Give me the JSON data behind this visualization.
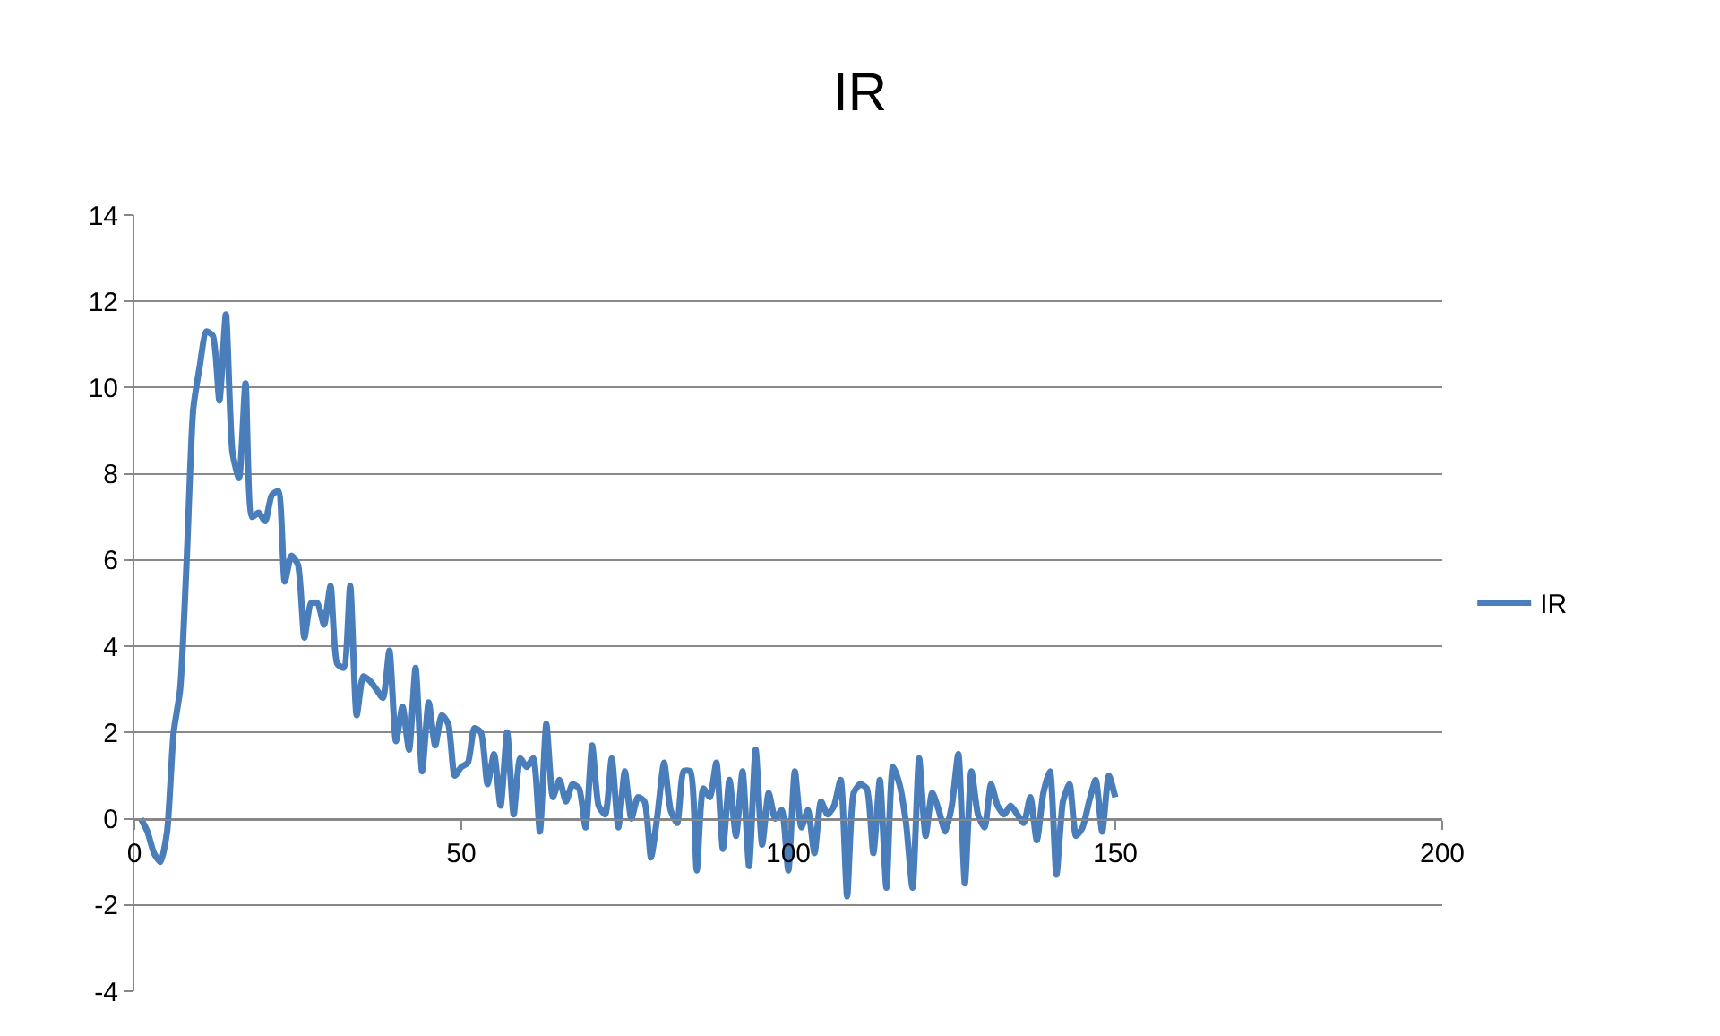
{
  "chart_data": {
    "type": "line",
    "title": "IR",
    "x": [
      1,
      2,
      3,
      4,
      5,
      6,
      7,
      8,
      9,
      10,
      11,
      12,
      13,
      14,
      15,
      16,
      17,
      18,
      19,
      20,
      21,
      22,
      23,
      24,
      25,
      26,
      27,
      28,
      29,
      30,
      31,
      32,
      33,
      34,
      35,
      36,
      37,
      38,
      39,
      40,
      41,
      42,
      43,
      44,
      45,
      46,
      47,
      48,
      49,
      50,
      51,
      52,
      53,
      54,
      55,
      56,
      57,
      58,
      59,
      60,
      61,
      62,
      63,
      64,
      65,
      66,
      67,
      68,
      69,
      70,
      71,
      72,
      73,
      74,
      75,
      76,
      77,
      78,
      79,
      80,
      81,
      82,
      83,
      84,
      85,
      86,
      87,
      88,
      89,
      90,
      91,
      92,
      93,
      94,
      95,
      96,
      97,
      98,
      99,
      100,
      101,
      102,
      103,
      104,
      105,
      106,
      107,
      108,
      109,
      110,
      111,
      112,
      113,
      114,
      115,
      116,
      117,
      118,
      119,
      120,
      121,
      122,
      123,
      124,
      125,
      126,
      127,
      128,
      129,
      130,
      131,
      132,
      133,
      134,
      135,
      136,
      137,
      138,
      139,
      140,
      141,
      142,
      143,
      144,
      145,
      146,
      147,
      148,
      149,
      150
    ],
    "series": [
      {
        "name": "IR",
        "color": "#4a7ebb",
        "values": [
          0,
          -0.3,
          -0.8,
          -1,
          -0.3,
          2,
          3,
          6,
          9.5,
          10.5,
          11.3,
          11.2,
          9.7,
          11.7,
          8.5,
          7.9,
          10.1,
          7,
          7.1,
          6.9,
          7.5,
          7.6,
          5.5,
          6.1,
          5.9,
          4.2,
          5,
          5,
          4.5,
          5.4,
          3.6,
          3.5,
          5.4,
          2.4,
          3.3,
          3.2,
          3,
          2.8,
          3.9,
          1.8,
          2.6,
          1.6,
          3.5,
          1.1,
          2.7,
          1.7,
          2.4,
          2.2,
          1,
          1.2,
          1.3,
          2.1,
          2,
          0.8,
          1.5,
          0.3,
          2,
          0.1,
          1.4,
          1.2,
          1.4,
          -0.3,
          2.2,
          0.5,
          0.9,
          0.4,
          0.8,
          0.7,
          -0.2,
          1.7,
          0.3,
          0.1,
          1.4,
          -0.2,
          1.1,
          0,
          0.5,
          0.4,
          -0.9,
          0.1,
          1.3,
          0.2,
          -0.1,
          1.1,
          1.1,
          -1.2,
          0.7,
          0.5,
          1.3,
          -0.7,
          0.9,
          -0.4,
          1.1,
          -1.1,
          1.6,
          -0.6,
          0.6,
          0,
          0.2,
          -1.2,
          1.1,
          -0.2,
          0.2,
          -0.8,
          0.4,
          0.1,
          0.3,
          0.9,
          -1.8,
          0.6,
          0.8,
          0.7,
          -0.8,
          0.9,
          -1.6,
          1.2,
          0.8,
          -0.1,
          -1.6,
          1.4,
          -0.4,
          0.6,
          0.2,
          -0.3,
          0.3,
          1.5,
          -1.5,
          1.1,
          0.1,
          -0.2,
          0.8,
          0.3,
          0.1,
          0.3,
          0.1,
          -0.1,
          0.5,
          -0.5,
          0.6,
          1.1,
          -1.3,
          0.4,
          0.8,
          -0.4,
          -0.2,
          0.4,
          0.9,
          -0.3,
          1,
          0.5
        ]
      }
    ],
    "xlim": [
      0,
      200
    ],
    "xticks": [
      0,
      50,
      100,
      150,
      200
    ],
    "ylim": [
      -4,
      14
    ],
    "yticks": [
      -4,
      -2,
      0,
      2,
      4,
      6,
      8,
      10,
      12,
      14
    ],
    "grid": "y",
    "legend": "right",
    "marker": "none",
    "line_style": "solid"
  }
}
